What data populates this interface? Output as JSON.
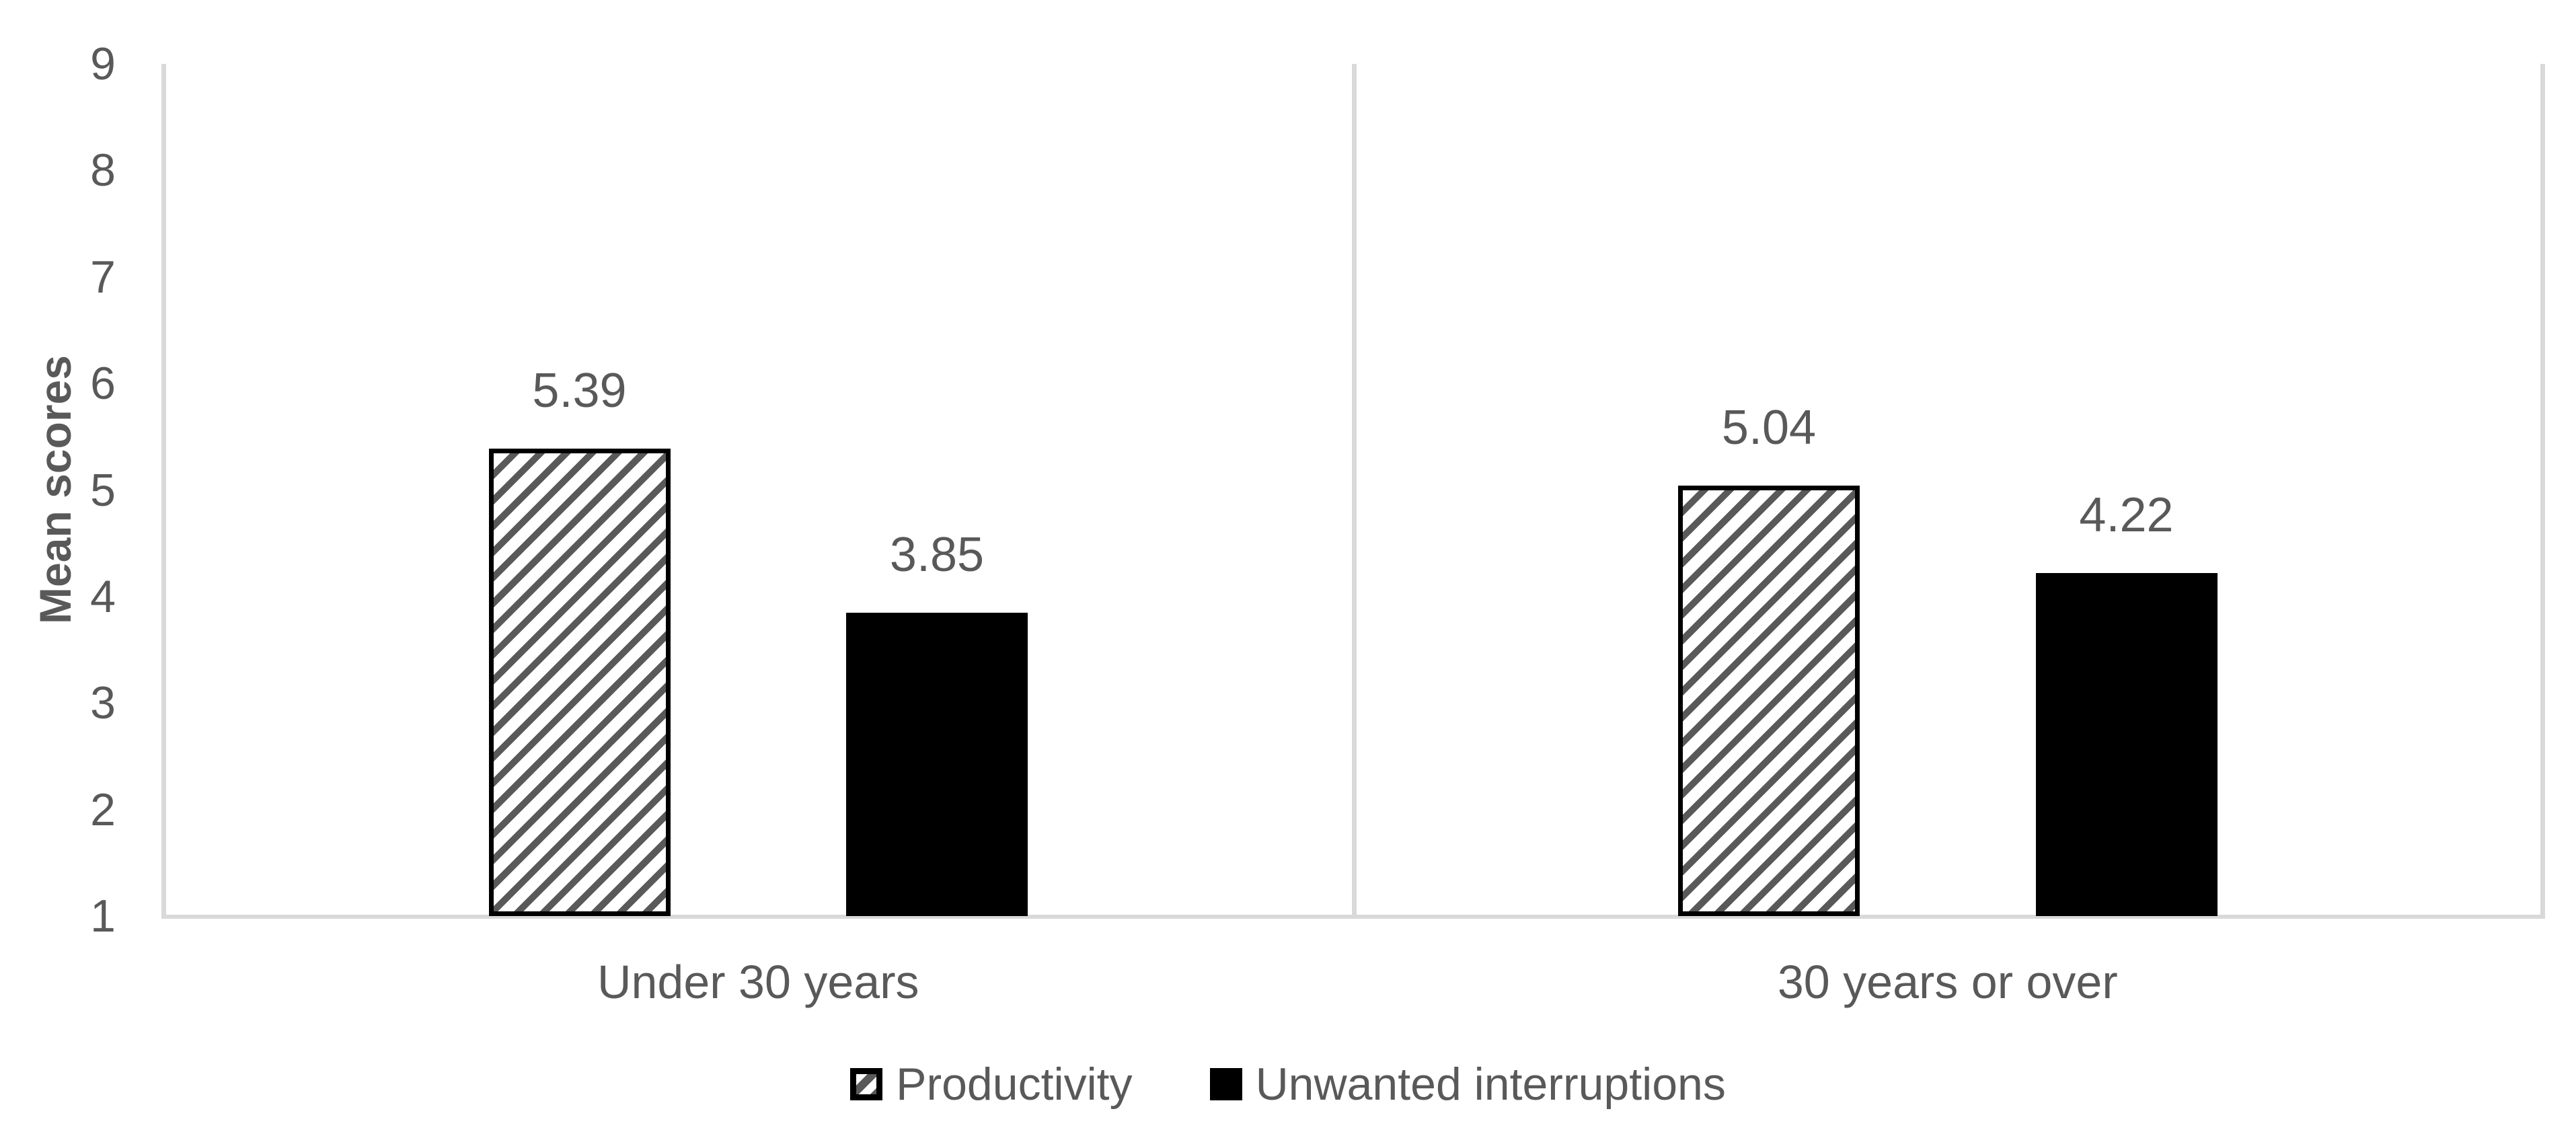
{
  "chart_data": {
    "type": "bar",
    "title": "",
    "xlabel": "",
    "ylabel": "Mean scores",
    "ylim": [
      1,
      9
    ],
    "yticks": [
      1,
      2,
      3,
      4,
      5,
      6,
      7,
      8,
      9
    ],
    "grid": "no horizontal gridlines; vertical category boundary lines and right plot border visible",
    "legend_position": "bottom",
    "categories": [
      "Under 30 years",
      "30 years or over"
    ],
    "series": [
      {
        "name": "Productivity",
        "style": "hatched",
        "values": [
          5.39,
          5.04
        ],
        "labels": [
          "5.39",
          "5.04"
        ]
      },
      {
        "name": "Unwanted interruptions",
        "style": "solid",
        "values": [
          3.85,
          4.22
        ],
        "labels": [
          "3.85",
          "4.22"
        ]
      }
    ],
    "colors": {
      "bar_solid_fill": "#000000",
      "bar_hatch_stripe": "#595959",
      "bar_border": "#000000",
      "axis_line": "#d9d9d9",
      "text": "#595959",
      "background": "#ffffff"
    }
  }
}
